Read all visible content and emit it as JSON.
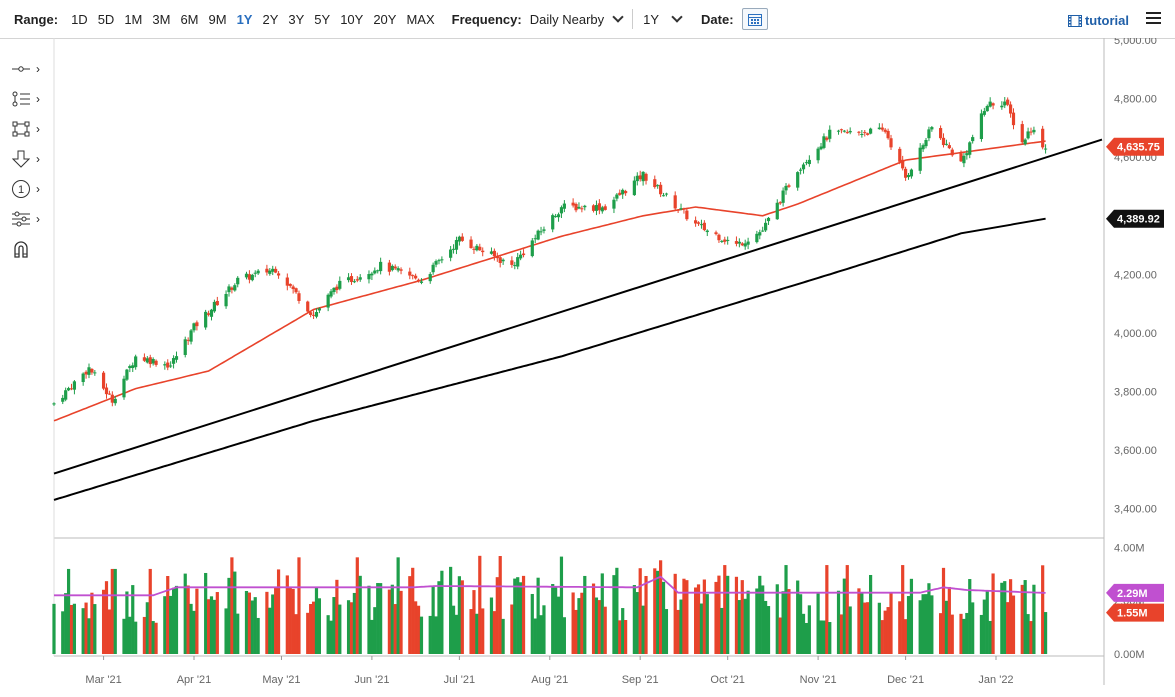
{
  "toolbar": {
    "range_label": "Range:",
    "ranges": [
      "1D",
      "5D",
      "1M",
      "3M",
      "6M",
      "9M",
      "1Y",
      "2Y",
      "3Y",
      "5Y",
      "10Y",
      "20Y",
      "MAX"
    ],
    "active_range": "1Y",
    "frequency_label": "Frequency:",
    "frequency_value": "Daily Nearby",
    "period_value": "1Y",
    "date_label": "Date:",
    "tutorial_label": "tutorial"
  },
  "drawing_tools": [
    "crosshair-icon",
    "trend-tools-icon",
    "shape-tools-icon",
    "arrow-down-icon",
    "annotation-number-icon",
    "measure-tools-icon",
    "magnet-icon"
  ],
  "chart_data": {
    "type": "candlestick",
    "price_axis": {
      "ylim": [
        3300,
        5000
      ],
      "ticks": [
        "3,400.00",
        "3,600.00",
        "3,800.00",
        "4,000.00",
        "4,200.00",
        "4,400.00",
        "4,600.00",
        "4,800.00",
        "5,000.00"
      ]
    },
    "volume_axis": {
      "ylim": [
        0,
        4.2
      ],
      "ticks": [
        "0.00M",
        "2.00M",
        "4.00M"
      ]
    },
    "x_ticks": [
      "Mar '21",
      "Apr '21",
      "May '21",
      "Jun '21",
      "Jul '21",
      "Aug '21",
      "Sep '21",
      "Oct '21",
      "Nov '21",
      "Dec '21",
      "Jan '22"
    ],
    "close_anchors": [
      [
        "2021-02-12",
        3760
      ],
      [
        "2021-02-24",
        3880
      ],
      [
        "2021-03-04",
        3770
      ],
      [
        "2021-03-12",
        3920
      ],
      [
        "2021-03-24",
        3890
      ],
      [
        "2021-04-01",
        4020
      ],
      [
        "2021-04-16",
        4180
      ],
      [
        "2021-04-29",
        4220
      ],
      [
        "2021-05-12",
        4060
      ],
      [
        "2021-05-20",
        4160
      ],
      [
        "2021-06-04",
        4230
      ],
      [
        "2021-06-18",
        4180
      ],
      [
        "2021-07-01",
        4320
      ],
      [
        "2021-07-19",
        4230
      ],
      [
        "2021-08-05",
        4430
      ],
      [
        "2021-08-20",
        4430
      ],
      [
        "2021-09-02",
        4540
      ],
      [
        "2021-09-20",
        4370
      ],
      [
        "2021-10-04",
        4300
      ],
      [
        "2021-10-13",
        4350
      ],
      [
        "2021-10-25",
        4560
      ],
      [
        "2021-11-05",
        4680
      ],
      [
        "2021-11-24",
        4690
      ],
      [
        "2021-12-01",
        4530
      ],
      [
        "2021-12-10",
        4700
      ],
      [
        "2021-12-20",
        4580
      ],
      [
        "2021-12-29",
        4780
      ],
      [
        "2022-01-04",
        4790
      ],
      [
        "2022-01-10",
        4650
      ],
      [
        "2022-01-13",
        4700
      ],
      [
        "2022-01-18",
        4630
      ]
    ],
    "ma50_anchors": [
      [
        "2021-02-12",
        3700
      ],
      [
        "2021-03-12",
        3810
      ],
      [
        "2021-04-06",
        3870
      ],
      [
        "2021-05-12",
        4080
      ],
      [
        "2021-06-18",
        4180
      ],
      [
        "2021-08-05",
        4330
      ],
      [
        "2021-09-02",
        4400
      ],
      [
        "2021-09-20",
        4430
      ],
      [
        "2021-10-13",
        4400
      ],
      [
        "2021-10-25",
        4440
      ],
      [
        "2021-12-01",
        4590
      ],
      [
        "2022-01-18",
        4655
      ]
    ],
    "ma200_anchors": [
      [
        "2021-02-12",
        3430
      ],
      [
        "2021-05-12",
        3700
      ],
      [
        "2021-08-05",
        3920
      ],
      [
        "2021-09-20",
        4060
      ],
      [
        "2021-11-05",
        4200
      ],
      [
        "2021-12-20",
        4340
      ],
      [
        "2022-01-18",
        4390
      ]
    ],
    "trendline": [
      [
        "2021-02-12",
        3520
      ],
      [
        "2022-01-24",
        4660
      ]
    ],
    "volume_avg_anchors": [
      [
        "2021-02-12",
        2.2
      ],
      [
        "2021-03-18",
        2.2
      ],
      [
        "2021-03-26",
        2.5
      ],
      [
        "2021-04-06",
        2.5
      ],
      [
        "2021-06-15",
        2.5
      ],
      [
        "2021-06-23",
        2.55
      ],
      [
        "2021-08-31",
        2.5
      ],
      [
        "2021-09-08",
        2.9
      ],
      [
        "2021-09-14",
        2.3
      ],
      [
        "2021-11-30",
        2.3
      ],
      [
        "2021-12-06",
        2.3
      ],
      [
        "2021-12-14",
        2.5
      ],
      [
        "2021-12-22",
        2.4
      ],
      [
        "2022-01-18",
        2.29
      ]
    ],
    "last_price": "4,635.75",
    "ma200_value": "4,389.92",
    "volume_avg_value": "2.29M",
    "volume_last_value": "1.55M",
    "colors": {
      "up": "#1e9e4a",
      "down": "#e8432b",
      "ma50": "#e8432b",
      "ma200": "#000000",
      "trend": "#000000",
      "vol_avg": "#c050d0"
    }
  }
}
